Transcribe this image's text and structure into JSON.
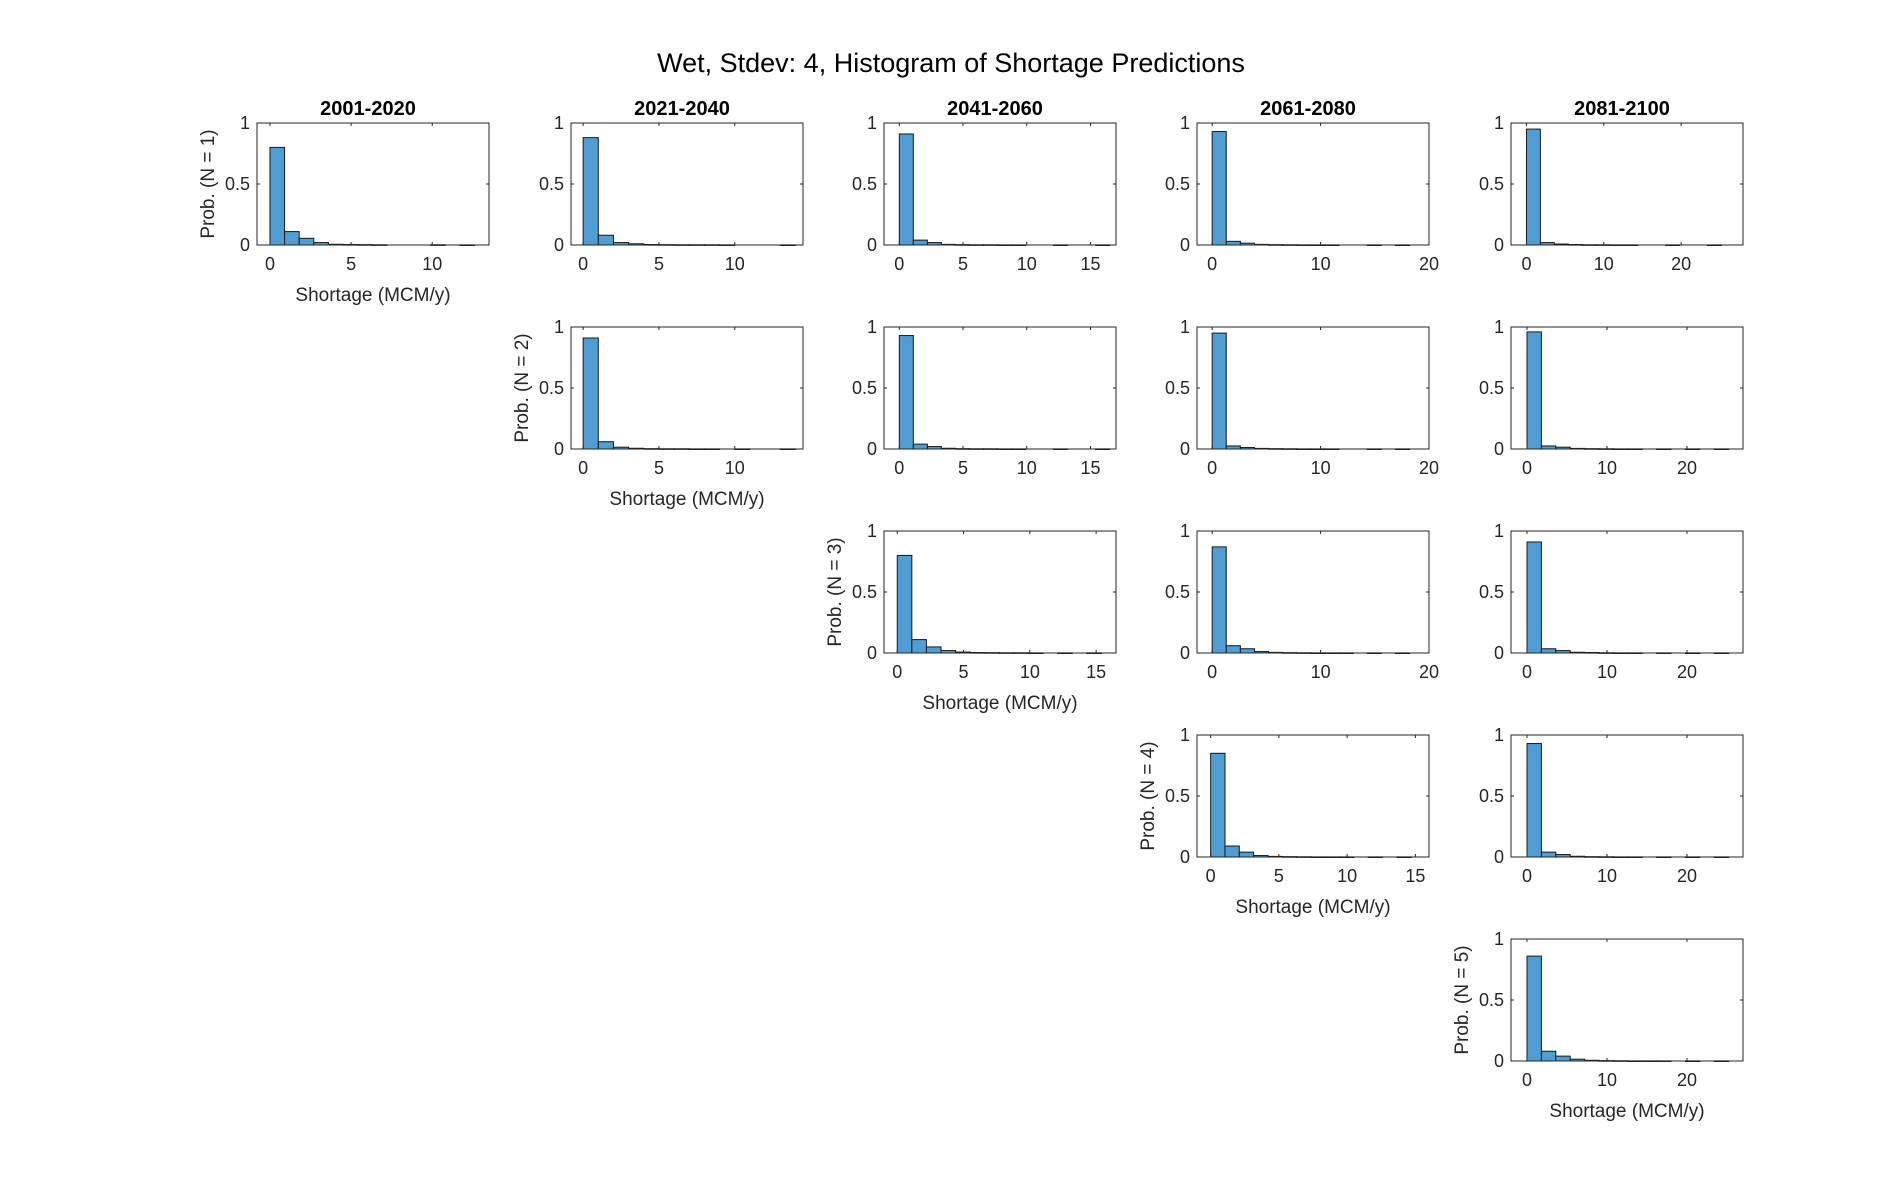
{
  "title": "Wet, Stdev: 4, Histogram of Shortage Predictions",
  "column_titles": [
    "2001-2020",
    "2021-2040",
    "2041-2060",
    "2061-2080",
    "2081-2100"
  ],
  "row_labels": [
    "Prob. (N = 1)",
    "Prob. (N = 2)",
    "Prob. (N = 3)",
    "Prob. (N = 4)",
    "Prob. (N = 5)"
  ],
  "xlabel": "Shortage (MCM/y)",
  "colors": {
    "bar": "#4f9dd3",
    "edge": "#1a1a1a"
  },
  "chart_data": [
    {
      "type": "bar",
      "row": 0,
      "col": 0,
      "ylabel": "Prob. (N = 1)",
      "xlabel": "Shortage (MCM/y)",
      "title": "2001-2020",
      "xlim": [
        -0.8,
        13.5
      ],
      "ylim": [
        0,
        1
      ],
      "xticks": [
        0,
        5,
        10
      ],
      "yticks": [
        0,
        0.5,
        1
      ],
      "bin_width": 0.9,
      "values": [
        0.8,
        0.11,
        0.055,
        0.02,
        0.006,
        0.004,
        0.003,
        0.002,
        0,
        0,
        0,
        0.002,
        0,
        0.001
      ]
    },
    {
      "type": "bar",
      "row": 0,
      "col": 1,
      "title": "2021-2040",
      "xlim": [
        -0.8,
        14.5
      ],
      "ylim": [
        0,
        1
      ],
      "xticks": [
        0,
        5,
        10
      ],
      "yticks": [
        0,
        0.5,
        1
      ],
      "bin_width": 1.0,
      "values": [
        0.88,
        0.08,
        0.02,
        0.01,
        0.004,
        0.003,
        0.002,
        0.002,
        0.002,
        0.001,
        0,
        0,
        0,
        0.001
      ]
    },
    {
      "type": "bar",
      "row": 0,
      "col": 2,
      "title": "2041-2060",
      "xlim": [
        -1.2,
        17.0
      ],
      "ylim": [
        0,
        1
      ],
      "xticks": [
        0,
        5,
        10,
        15
      ],
      "yticks": [
        0,
        0.5,
        1
      ],
      "bin_width": 1.1,
      "values": [
        0.91,
        0.04,
        0.02,
        0.005,
        0.003,
        0.002,
        0.002,
        0.001,
        0.001,
        0,
        0,
        0.001,
        0,
        0,
        0.001
      ]
    },
    {
      "type": "bar",
      "row": 0,
      "col": 3,
      "title": "2061-2080",
      "xlim": [
        -1.4,
        20.0
      ],
      "ylim": [
        0,
        1
      ],
      "xticks": [
        0,
        10,
        20
      ],
      "yticks": [
        0,
        0.5,
        1
      ],
      "bin_width": 1.3,
      "values": [
        0.93,
        0.03,
        0.015,
        0.005,
        0.003,
        0.002,
        0.001,
        0.001,
        0.001,
        0,
        0,
        0.001,
        0,
        0.001
      ]
    },
    {
      "type": "bar",
      "row": 0,
      "col": 4,
      "title": "2081-2100",
      "xlim": [
        -2.0,
        28.0
      ],
      "ylim": [
        0,
        1
      ],
      "xticks": [
        0,
        10,
        20
      ],
      "yticks": [
        0,
        0.5,
        1
      ],
      "bin_width": 1.8,
      "values": [
        0.95,
        0.02,
        0.008,
        0.004,
        0.002,
        0.002,
        0.001,
        0.001,
        0,
        0,
        0.001,
        0,
        0,
        0.001
      ]
    },
    {
      "type": "bar",
      "row": 1,
      "col": 1,
      "ylabel": "Prob. (N = 2)",
      "xlabel": "Shortage (MCM/y)",
      "xlim": [
        -0.8,
        14.5
      ],
      "ylim": [
        0,
        1
      ],
      "xticks": [
        0,
        5,
        10
      ],
      "yticks": [
        0,
        0.5,
        1
      ],
      "bin_width": 1.0,
      "values": [
        0.91,
        0.06,
        0.015,
        0.006,
        0.003,
        0.002,
        0.002,
        0.001,
        0.001,
        0,
        0.001,
        0,
        0,
        0.001
      ]
    },
    {
      "type": "bar",
      "row": 1,
      "col": 2,
      "xlim": [
        -1.2,
        17.0
      ],
      "ylim": [
        0,
        1
      ],
      "xticks": [
        0,
        5,
        10,
        15
      ],
      "yticks": [
        0,
        0.5,
        1
      ],
      "bin_width": 1.1,
      "values": [
        0.93,
        0.04,
        0.02,
        0.006,
        0.003,
        0.002,
        0.002,
        0.001,
        0.001,
        0,
        0,
        0.001,
        0,
        0,
        0.001
      ]
    },
    {
      "type": "bar",
      "row": 1,
      "col": 3,
      "xlim": [
        -1.4,
        20.0
      ],
      "ylim": [
        0,
        1
      ],
      "xticks": [
        0,
        10,
        20
      ],
      "yticks": [
        0,
        0.5,
        1
      ],
      "bin_width": 1.3,
      "values": [
        0.95,
        0.025,
        0.012,
        0.005,
        0.003,
        0.002,
        0.001,
        0.001,
        0.001,
        0,
        0,
        0.001,
        0,
        0.001
      ]
    },
    {
      "type": "bar",
      "row": 1,
      "col": 4,
      "xlim": [
        -2.0,
        27.0
      ],
      "ylim": [
        0,
        1
      ],
      "xticks": [
        0,
        10,
        20
      ],
      "yticks": [
        0,
        0.5,
        1
      ],
      "bin_width": 1.8,
      "values": [
        0.96,
        0.025,
        0.015,
        0.005,
        0.003,
        0.002,
        0.001,
        0.001,
        0,
        0.001,
        0,
        0.001,
        0,
        0.001
      ]
    },
    {
      "type": "bar",
      "row": 2,
      "col": 2,
      "ylabel": "Prob. (N = 3)",
      "xlabel": "Shortage (MCM/y)",
      "xlim": [
        -1.0,
        16.5
      ],
      "ylim": [
        0,
        1
      ],
      "xticks": [
        0,
        5,
        10,
        15
      ],
      "yticks": [
        0,
        0.5,
        1
      ],
      "bin_width": 1.1,
      "values": [
        0.8,
        0.11,
        0.05,
        0.02,
        0.008,
        0.004,
        0.003,
        0.002,
        0.002,
        0.001,
        0,
        0.001,
        0,
        0.001
      ]
    },
    {
      "type": "bar",
      "row": 2,
      "col": 3,
      "xlim": [
        -1.4,
        20.0
      ],
      "ylim": [
        0,
        1
      ],
      "xticks": [
        0,
        10,
        20
      ],
      "yticks": [
        0,
        0.5,
        1
      ],
      "bin_width": 1.3,
      "values": [
        0.87,
        0.06,
        0.035,
        0.012,
        0.005,
        0.003,
        0.002,
        0.001,
        0.001,
        0.001,
        0,
        0.001,
        0,
        0.001
      ]
    },
    {
      "type": "bar",
      "row": 2,
      "col": 4,
      "xlim": [
        -2.0,
        27.0
      ],
      "ylim": [
        0,
        1
      ],
      "xticks": [
        0,
        10,
        20
      ],
      "yticks": [
        0,
        0.5,
        1
      ],
      "bin_width": 1.8,
      "values": [
        0.91,
        0.035,
        0.02,
        0.006,
        0.004,
        0.002,
        0.001,
        0.001,
        0,
        0.001,
        0,
        0.001,
        0,
        0.001
      ]
    },
    {
      "type": "bar",
      "row": 3,
      "col": 3,
      "ylabel": "Prob. (N = 4)",
      "xlabel": "Shortage (MCM/y)",
      "xlim": [
        -1.0,
        16.0
      ],
      "ylim": [
        0,
        1
      ],
      "xticks": [
        0,
        5,
        10,
        15
      ],
      "yticks": [
        0,
        0.5,
        1
      ],
      "bin_width": 1.05,
      "values": [
        0.85,
        0.09,
        0.04,
        0.012,
        0.005,
        0.003,
        0.002,
        0.001,
        0.001,
        0.001,
        0,
        0.001,
        0,
        0.001
      ]
    },
    {
      "type": "bar",
      "row": 3,
      "col": 4,
      "xlim": [
        -2.0,
        27.0
      ],
      "ylim": [
        0,
        1
      ],
      "xticks": [
        0,
        10,
        20
      ],
      "yticks": [
        0,
        0.5,
        1
      ],
      "bin_width": 1.8,
      "values": [
        0.93,
        0.04,
        0.02,
        0.006,
        0.003,
        0.002,
        0.001,
        0.001,
        0,
        0.001,
        0,
        0.001,
        0,
        0.001
      ]
    },
    {
      "type": "bar",
      "row": 4,
      "col": 4,
      "ylabel": "Prob. (N = 5)",
      "xlabel": "Shortage (MCM/y)",
      "xlim": [
        -2.0,
        27.0
      ],
      "ylim": [
        0,
        1
      ],
      "xticks": [
        0,
        10,
        20
      ],
      "yticks": [
        0,
        0.5,
        1
      ],
      "bin_width": 1.8,
      "values": [
        0.86,
        0.08,
        0.04,
        0.015,
        0.006,
        0.003,
        0.002,
        0.001,
        0.001,
        0.001,
        0,
        0.001,
        0,
        0.001
      ]
    }
  ]
}
